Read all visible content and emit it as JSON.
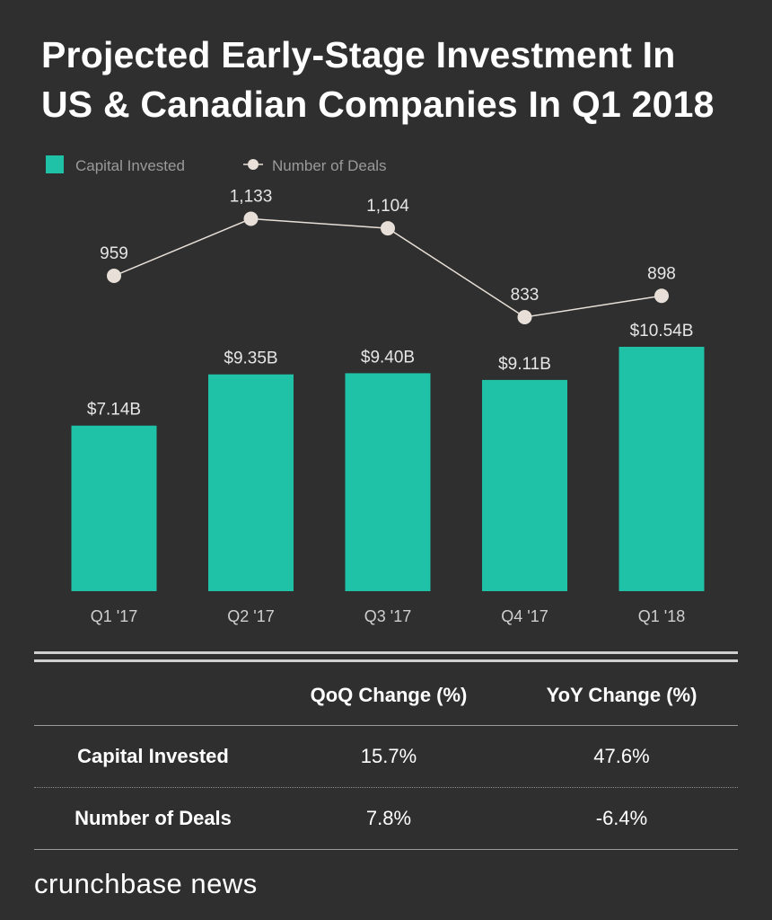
{
  "title": [
    "Projected Early-Stage Investment In",
    "US & Canadian Companies In Q1 2018"
  ],
  "colors": {
    "background": "#2f2f2f",
    "bar": "#1fc2a7",
    "line": "#e8e0d8",
    "text": "#ffffff",
    "muted": "#bdbdbd"
  },
  "chart_data": {
    "type": "bar",
    "categories": [
      "Q1 '17",
      "Q2 '17",
      "Q3 '17",
      "Q4 '17",
      "Q1 '18"
    ],
    "series": [
      {
        "name": "Capital Invested",
        "type": "bar",
        "values": [
          7.14,
          9.35,
          9.4,
          9.11,
          10.54
        ],
        "labels": [
          "$7.14B",
          "$9.35B",
          "$9.40B",
          "$9.11B",
          "$10.54B"
        ]
      },
      {
        "name": "Number of Deals",
        "type": "line",
        "values": [
          959,
          1133,
          1104,
          833,
          898
        ],
        "labels": [
          "959",
          "1,133",
          "1,104",
          "833",
          "898"
        ]
      }
    ],
    "legend": [
      "Capital Invested",
      "Number of Deals"
    ],
    "legend_position": "top-left",
    "grid": false
  },
  "table": {
    "columns": [
      "",
      "QoQ Change (%)",
      "YoY Change (%)"
    ],
    "rows": [
      [
        "Capital Invested",
        "15.7%",
        "47.6%"
      ],
      [
        "Number of Deals",
        "7.8%",
        "-6.4%"
      ]
    ]
  },
  "brand": "crunchbase news"
}
